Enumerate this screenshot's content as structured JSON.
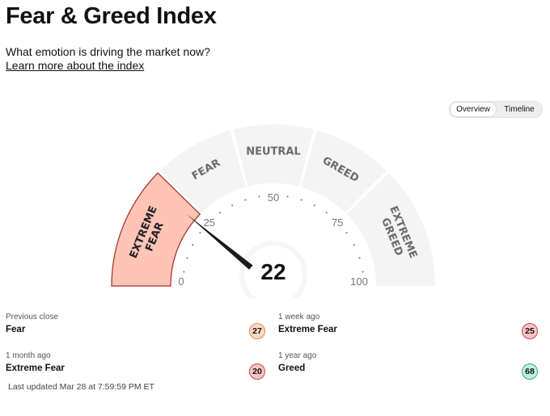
{
  "header": {
    "title": "Fear & Greed Index",
    "subtitle": "What emotion is driving the market now?",
    "learn_more": "Learn more about the index"
  },
  "view_toggle": {
    "options": [
      "Overview",
      "Timeline"
    ],
    "active": "Overview"
  },
  "gauge": {
    "value": "22",
    "score": 22,
    "scale_labels": [
      "0",
      "25",
      "50",
      "75",
      "100"
    ],
    "segments": [
      {
        "label_lines": [
          "EXTREME",
          "FEAR"
        ],
        "active": true
      },
      {
        "label_lines": [
          "FEAR"
        ],
        "active": false
      },
      {
        "label_lines": [
          "NEUTRAL"
        ],
        "active": false
      },
      {
        "label_lines": [
          "GREED"
        ],
        "active": false
      },
      {
        "label_lines": [
          "EXTREME",
          "GREED"
        ],
        "active": false
      }
    ],
    "colors": {
      "segment": "#f4f4f4",
      "active_fill": "#ffc4b6",
      "active_stroke": "#a52a2a",
      "needle": "#1a1a1a",
      "label": "#6a6a6a"
    }
  },
  "history": [
    {
      "label": "Previous close",
      "value": "Fear",
      "score": "27",
      "color": "#fdd7c2",
      "border": "#e0885a"
    },
    {
      "label": "1 week ago",
      "value": "Extreme Fear",
      "score": "25",
      "color": "#fbc4c4",
      "border": "#c94a4a"
    },
    {
      "label": "1 month ago",
      "value": "Extreme Fear",
      "score": "20",
      "color": "#fbc4c4",
      "border": "#c94a4a"
    },
    {
      "label": "1 year ago",
      "value": "Greed",
      "score": "68",
      "color": "#bfeee0",
      "border": "#3fa58a"
    }
  ],
  "last_updated": "Last updated Mar 28 at 7:59:59 PM ET"
}
